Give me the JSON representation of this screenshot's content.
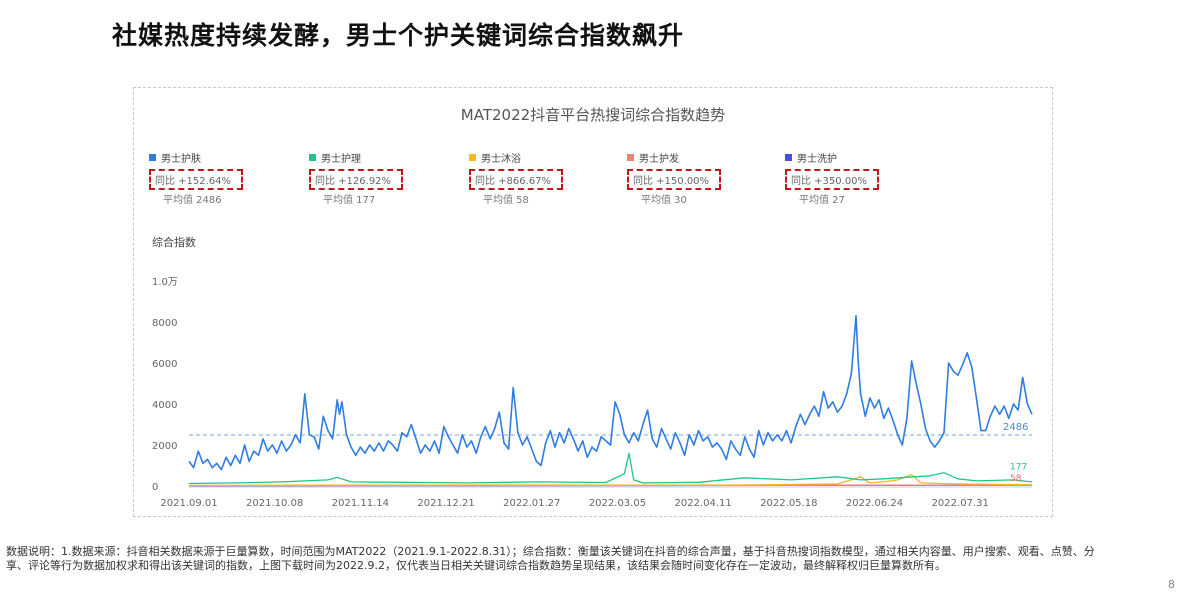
{
  "page": {
    "title": "社媒热度持续发酵，男士个护关键词综合指数飙升",
    "footnote": "数据说明：1.数据来源：抖音相关数据来源于巨量算数，时间范围为MAT2022（2021.9.1-2022.8.31）；综合指数：衡量该关键词在抖音的综合声量，基于抖音热搜词指数模型，通过相关内容量、用户搜索、观看、点赞、分享、评论等行为数据加权求和得出该关键词的指数，上图下载时间为2022.9.2，仅代表当日相关关键词综合指数趋势呈现结果，该结果会随时间变化存在一定波动，最终解释权归巨量算数所有。",
    "page_number": "8"
  },
  "chart_data": {
    "type": "line",
    "title": "MAT2022抖音平台热搜词综合指数趋势",
    "ylabel": "综合指数",
    "ylim": [
      0,
      10000
    ],
    "y_ticks": [
      "0",
      "2000",
      "4000",
      "6000",
      "8000",
      "1.0万"
    ],
    "x_ticks": [
      "2021.09.01",
      "2021.10.08",
      "2021.11.14",
      "2021.12.21",
      "2022.01.27",
      "2022.03.05",
      "2022.04.11",
      "2022.05.18",
      "2022.06.24",
      "2022.07.31"
    ],
    "grid": false,
    "legend_placement": "top",
    "legend": [
      {
        "name": "男士护肤",
        "yoy": "同比 +152.64%",
        "avg": "平均值 2486",
        "color": "#2f7de1"
      },
      {
        "name": "男士护理",
        "yoy": "同比 +126.92%",
        "avg": "平均值 177",
        "color": "#21c48f"
      },
      {
        "name": "男士沐浴",
        "yoy": "同比 +866.67%",
        "avg": "平均值 58",
        "color": "#f5b623"
      },
      {
        "name": "男士护发",
        "yoy": "同比 +150.00%",
        "avg": "平均值 30",
        "color": "#f0827a"
      },
      {
        "name": "男士洗护",
        "yoy": "同比 +350.00%",
        "avg": "平均值 27",
        "color": "#4a4fd8"
      }
    ],
    "reference_line": {
      "value": 2486,
      "label": "2486"
    },
    "end_labels": [
      "177",
      "58"
    ],
    "x_days_total": 364,
    "series": [
      {
        "name": "男士护肤",
        "color": "#2f7de1",
        "points": [
          [
            0,
            1200
          ],
          [
            2,
            900
          ],
          [
            4,
            1700
          ],
          [
            6,
            1100
          ],
          [
            8,
            1300
          ],
          [
            10,
            900
          ],
          [
            12,
            1100
          ],
          [
            14,
            800
          ],
          [
            16,
            1400
          ],
          [
            18,
            1000
          ],
          [
            20,
            1500
          ],
          [
            22,
            1100
          ],
          [
            24,
            2000
          ],
          [
            26,
            1200
          ],
          [
            28,
            1700
          ],
          [
            30,
            1500
          ],
          [
            32,
            2300
          ],
          [
            34,
            1700
          ],
          [
            36,
            2000
          ],
          [
            38,
            1600
          ],
          [
            40,
            2200
          ],
          [
            42,
            1700
          ],
          [
            44,
            2000
          ],
          [
            46,
            2500
          ],
          [
            48,
            2100
          ],
          [
            50,
            4500
          ],
          [
            52,
            2500
          ],
          [
            54,
            2400
          ],
          [
            56,
            1800
          ],
          [
            58,
            3400
          ],
          [
            60,
            2700
          ],
          [
            62,
            2300
          ],
          [
            64,
            4200
          ],
          [
            65,
            3500
          ],
          [
            66,
            4100
          ],
          [
            68,
            2500
          ],
          [
            70,
            1900
          ],
          [
            72,
            1500
          ],
          [
            74,
            1900
          ],
          [
            76,
            1600
          ],
          [
            78,
            2000
          ],
          [
            80,
            1700
          ],
          [
            82,
            2100
          ],
          [
            84,
            1700
          ],
          [
            86,
            2200
          ],
          [
            88,
            2000
          ],
          [
            90,
            1700
          ],
          [
            92,
            2600
          ],
          [
            94,
            2400
          ],
          [
            96,
            3000
          ],
          [
            98,
            2300
          ],
          [
            100,
            1600
          ],
          [
            102,
            2000
          ],
          [
            104,
            1700
          ],
          [
            106,
            2200
          ],
          [
            108,
            1600
          ],
          [
            110,
            2900
          ],
          [
            112,
            2400
          ],
          [
            114,
            2000
          ],
          [
            116,
            1600
          ],
          [
            118,
            2500
          ],
          [
            120,
            1900
          ],
          [
            122,
            2200
          ],
          [
            124,
            1600
          ],
          [
            126,
            2400
          ],
          [
            128,
            2900
          ],
          [
            130,
            2300
          ],
          [
            132,
            2800
          ],
          [
            134,
            3600
          ],
          [
            136,
            2100
          ],
          [
            138,
            1800
          ],
          [
            140,
            4800
          ],
          [
            142,
            2600
          ],
          [
            144,
            2000
          ],
          [
            146,
            2400
          ],
          [
            148,
            1800
          ],
          [
            150,
            1200
          ],
          [
            152,
            1000
          ],
          [
            154,
            2100
          ],
          [
            156,
            2700
          ],
          [
            158,
            1900
          ],
          [
            160,
            2600
          ],
          [
            162,
            2100
          ],
          [
            164,
            2800
          ],
          [
            166,
            2300
          ],
          [
            168,
            1700
          ],
          [
            170,
            2200
          ],
          [
            172,
            1400
          ],
          [
            174,
            1900
          ],
          [
            176,
            1700
          ],
          [
            178,
            2400
          ],
          [
            180,
            2200
          ],
          [
            182,
            2000
          ],
          [
            184,
            4100
          ],
          [
            186,
            3500
          ],
          [
            188,
            2500
          ],
          [
            190,
            2100
          ],
          [
            192,
            2600
          ],
          [
            194,
            2200
          ],
          [
            196,
            3000
          ],
          [
            198,
            3700
          ],
          [
            200,
            2300
          ],
          [
            202,
            1900
          ],
          [
            204,
            2800
          ],
          [
            206,
            2300
          ],
          [
            208,
            1800
          ],
          [
            210,
            2600
          ],
          [
            212,
            2100
          ],
          [
            214,
            1500
          ],
          [
            216,
            2500
          ],
          [
            218,
            2000
          ],
          [
            220,
            2700
          ],
          [
            222,
            2200
          ],
          [
            224,
            2400
          ],
          [
            226,
            1900
          ],
          [
            228,
            2100
          ],
          [
            230,
            1800
          ],
          [
            232,
            1300
          ],
          [
            234,
            2200
          ],
          [
            236,
            1800
          ],
          [
            238,
            1500
          ],
          [
            240,
            2400
          ],
          [
            242,
            1800
          ],
          [
            244,
            1400
          ],
          [
            246,
            2700
          ],
          [
            248,
            2000
          ],
          [
            250,
            2600
          ],
          [
            252,
            2200
          ],
          [
            254,
            2500
          ],
          [
            256,
            2200
          ],
          [
            258,
            2700
          ],
          [
            260,
            2100
          ],
          [
            262,
            2900
          ],
          [
            264,
            3500
          ],
          [
            266,
            3000
          ],
          [
            268,
            3500
          ],
          [
            270,
            3900
          ],
          [
            272,
            3400
          ],
          [
            274,
            4600
          ],
          [
            276,
            3800
          ],
          [
            278,
            4100
          ],
          [
            280,
            3600
          ],
          [
            282,
            3900
          ],
          [
            284,
            4500
          ],
          [
            286,
            5500
          ],
          [
            288,
            8300
          ],
          [
            289,
            6000
          ],
          [
            290,
            4500
          ],
          [
            292,
            3400
          ],
          [
            294,
            4300
          ],
          [
            296,
            3800
          ],
          [
            298,
            4200
          ],
          [
            300,
            3300
          ],
          [
            302,
            3800
          ],
          [
            304,
            3200
          ],
          [
            306,
            2500
          ],
          [
            308,
            2000
          ],
          [
            310,
            3300
          ],
          [
            312,
            6100
          ],
          [
            314,
            5000
          ],
          [
            316,
            4000
          ],
          [
            318,
            2800
          ],
          [
            320,
            2200
          ],
          [
            322,
            1900
          ],
          [
            324,
            2200
          ],
          [
            326,
            2600
          ],
          [
            328,
            6000
          ],
          [
            330,
            5600
          ],
          [
            332,
            5400
          ],
          [
            334,
            5900
          ],
          [
            336,
            6500
          ],
          [
            338,
            5800
          ],
          [
            340,
            4300
          ],
          [
            342,
            2700
          ],
          [
            344,
            2700
          ],
          [
            346,
            3400
          ],
          [
            348,
            3900
          ],
          [
            350,
            3500
          ],
          [
            352,
            3900
          ],
          [
            354,
            3300
          ],
          [
            356,
            4000
          ],
          [
            358,
            3700
          ],
          [
            360,
            5300
          ],
          [
            362,
            4000
          ],
          [
            364,
            3500
          ]
        ]
      },
      {
        "name": "男士护理",
        "color": "#21c48f",
        "points": [
          [
            0,
            120
          ],
          [
            20,
            150
          ],
          [
            40,
            200
          ],
          [
            50,
            250
          ],
          [
            60,
            300
          ],
          [
            64,
            420
          ],
          [
            70,
            200
          ],
          [
            90,
            180
          ],
          [
            120,
            150
          ],
          [
            150,
            200
          ],
          [
            180,
            170
          ],
          [
            188,
            600
          ],
          [
            190,
            1600
          ],
          [
            192,
            300
          ],
          [
            196,
            150
          ],
          [
            220,
            180
          ],
          [
            240,
            400
          ],
          [
            260,
            300
          ],
          [
            280,
            450
          ],
          [
            290,
            300
          ],
          [
            300,
            350
          ],
          [
            320,
            500
          ],
          [
            326,
            650
          ],
          [
            332,
            350
          ],
          [
            340,
            250
          ],
          [
            356,
            300
          ],
          [
            364,
            200
          ]
        ]
      },
      {
        "name": "男士沐浴",
        "color": "#f5b623",
        "points": [
          [
            0,
            30
          ],
          [
            60,
            40
          ],
          [
            120,
            50
          ],
          [
            180,
            40
          ],
          [
            240,
            50
          ],
          [
            280,
            100
          ],
          [
            286,
            300
          ],
          [
            290,
            450
          ],
          [
            294,
            150
          ],
          [
            300,
            200
          ],
          [
            306,
            300
          ],
          [
            312,
            550
          ],
          [
            316,
            150
          ],
          [
            330,
            100
          ],
          [
            350,
            80
          ],
          [
            364,
            60
          ]
        ]
      },
      {
        "name": "男士护发",
        "color": "#f0827a",
        "points": [
          [
            0,
            20
          ],
          [
            100,
            25
          ],
          [
            200,
            30
          ],
          [
            300,
            40
          ],
          [
            364,
            35
          ]
        ]
      },
      {
        "name": "男士洗护",
        "color": "#4a4fd8",
        "points": [
          [
            0,
            15
          ],
          [
            100,
            20
          ],
          [
            200,
            25
          ],
          [
            300,
            35
          ],
          [
            364,
            30
          ]
        ]
      }
    ]
  }
}
